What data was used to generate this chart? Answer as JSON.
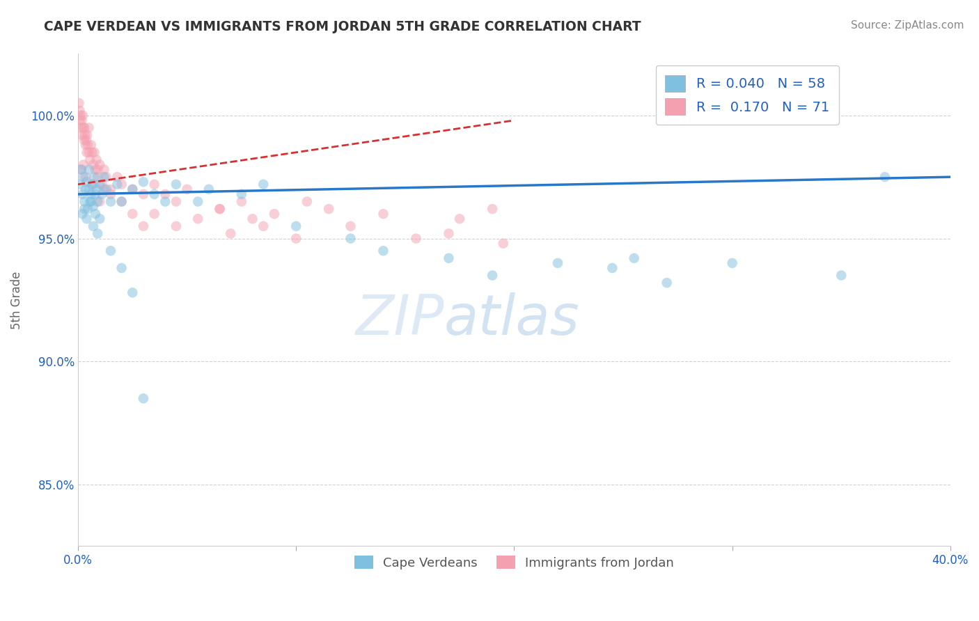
{
  "title": "CAPE VERDEAN VS IMMIGRANTS FROM JORDAN 5TH GRADE CORRELATION CHART",
  "source": "Source: ZipAtlas.com",
  "ylabel": "5th Grade",
  "xlim": [
    0.0,
    40.0
  ],
  "ylim": [
    82.5,
    102.5
  ],
  "yticks": [
    85.0,
    90.0,
    95.0,
    100.0
  ],
  "ytick_labels": [
    "85.0%",
    "90.0%",
    "95.0%",
    "100.0%"
  ],
  "blue_R": "0.040",
  "blue_N": "58",
  "pink_R": "0.170",
  "pink_N": "71",
  "legend_label_blue": "Cape Verdeans",
  "legend_label_pink": "Immigrants from Jordan",
  "blue_color": "#7fbfdf",
  "pink_color": "#f5a0b0",
  "blue_line_color": "#2878c8",
  "pink_line_color": "#d83030",
  "text_color_blue": "#2060c0",
  "scatter_alpha": 0.5,
  "scatter_size": 110,
  "blue_x": [
    0.1,
    0.15,
    0.2,
    0.25,
    0.3,
    0.35,
    0.4,
    0.45,
    0.5,
    0.55,
    0.6,
    0.65,
    0.7,
    0.75,
    0.8,
    0.85,
    0.9,
    1.0,
    1.1,
    1.2,
    1.3,
    1.5,
    1.8,
    2.0,
    2.5,
    3.0,
    3.5,
    4.0,
    4.5,
    5.5,
    6.0,
    7.5,
    8.5,
    10.0,
    12.5,
    14.0,
    17.0,
    19.0,
    22.0,
    24.5,
    25.5,
    27.0,
    30.0,
    35.0,
    37.0,
    0.2,
    0.3,
    0.4,
    0.5,
    0.6,
    0.7,
    0.8,
    0.9,
    1.0,
    1.5,
    2.0,
    2.5,
    3.0
  ],
  "blue_y": [
    97.2,
    97.8,
    96.8,
    97.5,
    96.5,
    97.0,
    97.3,
    96.2,
    97.8,
    96.5,
    96.8,
    97.2,
    96.3,
    97.5,
    96.0,
    97.0,
    96.5,
    97.2,
    96.8,
    97.5,
    97.0,
    96.5,
    97.2,
    96.5,
    97.0,
    97.3,
    96.8,
    96.5,
    97.2,
    96.5,
    97.0,
    96.8,
    97.2,
    95.5,
    95.0,
    94.5,
    94.2,
    93.5,
    94.0,
    93.8,
    94.2,
    93.2,
    94.0,
    93.5,
    97.5,
    96.0,
    96.2,
    95.8,
    97.0,
    96.5,
    95.5,
    96.8,
    95.2,
    95.8,
    94.5,
    93.8,
    92.8,
    88.5
  ],
  "pink_x": [
    0.05,
    0.08,
    0.1,
    0.12,
    0.15,
    0.18,
    0.2,
    0.22,
    0.25,
    0.28,
    0.3,
    0.32,
    0.35,
    0.38,
    0.4,
    0.42,
    0.45,
    0.5,
    0.55,
    0.6,
    0.65,
    0.7,
    0.75,
    0.8,
    0.85,
    0.9,
    1.0,
    1.1,
    1.2,
    1.3,
    1.5,
    1.8,
    2.0,
    2.5,
    3.0,
    3.5,
    4.0,
    4.5,
    5.0,
    6.5,
    7.5,
    9.0,
    10.5,
    11.5,
    14.0,
    17.5,
    19.0,
    0.15,
    0.25,
    0.35,
    0.5,
    0.7,
    0.9,
    1.0,
    1.2,
    1.5,
    2.0,
    2.5,
    3.0,
    3.5,
    4.5,
    5.5,
    7.0,
    8.5,
    10.0,
    12.5,
    15.5,
    17.0,
    19.5,
    6.5,
    8.0
  ],
  "pink_y": [
    100.5,
    100.2,
    99.8,
    100.0,
    99.5,
    99.8,
    99.2,
    100.0,
    99.5,
    99.0,
    99.5,
    99.2,
    98.8,
    99.0,
    98.5,
    99.2,
    98.8,
    99.5,
    98.2,
    98.8,
    98.5,
    98.0,
    98.5,
    97.8,
    98.2,
    97.5,
    98.0,
    97.2,
    97.8,
    97.5,
    97.0,
    97.5,
    97.2,
    97.0,
    96.8,
    97.2,
    96.8,
    96.5,
    97.0,
    96.2,
    96.5,
    96.0,
    96.5,
    96.2,
    96.0,
    95.8,
    96.2,
    97.8,
    98.0,
    97.5,
    98.5,
    97.2,
    97.8,
    96.5,
    97.0,
    96.8,
    96.5,
    96.0,
    95.5,
    96.0,
    95.5,
    95.8,
    95.2,
    95.5,
    95.0,
    95.5,
    95.0,
    95.2,
    94.8,
    96.2,
    95.8
  ]
}
